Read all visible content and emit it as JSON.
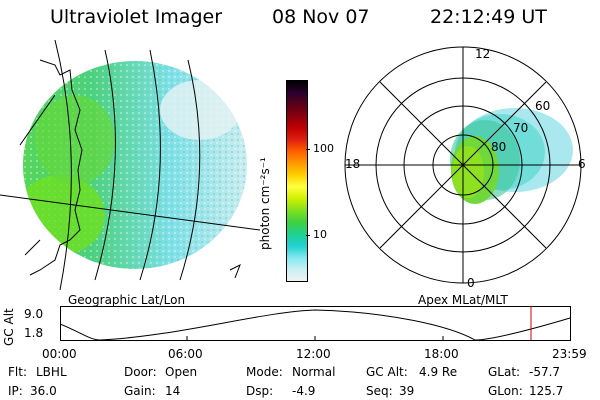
{
  "header": {
    "instrument": "Ultraviolet Imager",
    "date": "08 Nov 07",
    "time": "22:12:49 UT"
  },
  "colorbar": {
    "label": "photon cm⁻²s⁻¹",
    "tick_100": "100",
    "tick_10": "10",
    "scale": "log",
    "colors": [
      "#000000",
      "#2a0030",
      "#5a0018",
      "#8a0010",
      "#c00000",
      "#e02010",
      "#ff6000",
      "#ff9900",
      "#ffd000",
      "#ffff40",
      "#d0f000",
      "#80e020",
      "#40d040",
      "#20d090",
      "#20d0d0",
      "#80e8f0",
      "#c8f0f4",
      "#f0f0f0"
    ]
  },
  "left_panel": {
    "caption": "Geographic Lat/Lon"
  },
  "right_panel": {
    "caption": "Apex MLat/MLT",
    "mlt_top": "12",
    "mlt_left": "18",
    "mlt_right": "6",
    "mlt_bottom": "0",
    "lat_60": "60",
    "lat_70": "70",
    "lat_80": "80"
  },
  "altitude_plot": {
    "ylabel": "GC Alt",
    "y_max": "9.0",
    "y_min": "1.8",
    "x_ticks": [
      "00:00",
      "06:00",
      "12:00",
      "18:00",
      "23:59"
    ],
    "current_time_color": "#d00000"
  },
  "info": {
    "flt_label": "Flt:",
    "flt_value": "LBHL",
    "ip_label": "IP:",
    "ip_value": "36.0",
    "door_label": "Door:",
    "door_value": "Open",
    "gain_label": "Gain:",
    "gain_value": "14",
    "mode_label": "Mode:",
    "mode_value": "Normal",
    "dsp_label": "Dsp:",
    "dsp_value": "-4.9",
    "gcalt_label": "GC Alt:",
    "gcalt_value": "4.9 Re",
    "seq_label": "Seq:",
    "seq_value": "39",
    "glat_label": "GLat:",
    "glat_value": "-57.7",
    "glon_label": "GLon:",
    "glon_value": "125.7"
  }
}
